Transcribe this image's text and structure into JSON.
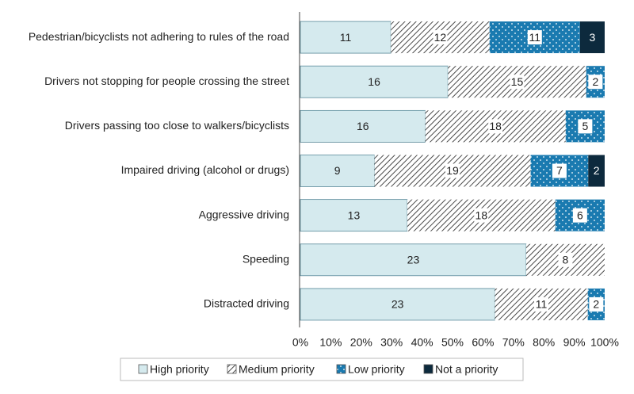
{
  "chart_data": {
    "type": "bar",
    "orientation": "horizontal",
    "stacking": "percent",
    "categories": [
      "Pedestrian/bicyclists not adhering to rules of the road",
      "Drivers not stopping for people crossing the street",
      "Drivers passing too close to walkers/bicyclists",
      "Impaired driving (alcohol or drugs)",
      "Aggressive driving",
      "Speeding",
      "Distracted driving"
    ],
    "series": [
      {
        "name": "High priority",
        "color": "#d5eaee",
        "pattern": "solid",
        "values": [
          11,
          16,
          16,
          9,
          13,
          23,
          23
        ]
      },
      {
        "name": "Medium priority",
        "color": "#4a4a4a",
        "pattern": "hatch",
        "values": [
          12,
          15,
          18,
          19,
          18,
          8,
          11
        ]
      },
      {
        "name": "Low priority",
        "color": "#1a7ab0",
        "pattern": "dots",
        "values": [
          11,
          2,
          5,
          7,
          6,
          null,
          2
        ]
      },
      {
        "name": "Not a priority",
        "color": "#0d2a3d",
        "pattern": "solid",
        "values": [
          3,
          null,
          null,
          2,
          null,
          null,
          null
        ]
      }
    ],
    "xlim": [
      0,
      100
    ],
    "xticks": [
      {
        "value": 0,
        "label": "0%"
      },
      {
        "value": 10,
        "label": "10%"
      },
      {
        "value": 20,
        "label": "20%"
      },
      {
        "value": 30,
        "label": "30%"
      },
      {
        "value": 40,
        "label": "40%"
      },
      {
        "value": 50,
        "label": "50%"
      },
      {
        "value": 60,
        "label": "60%"
      },
      {
        "value": 70,
        "label": "70%"
      },
      {
        "value": 80,
        "label": "80%"
      },
      {
        "value": 90,
        "label": "90%"
      },
      {
        "value": 100,
        "label": "100%"
      }
    ],
    "legend": "bottom"
  }
}
